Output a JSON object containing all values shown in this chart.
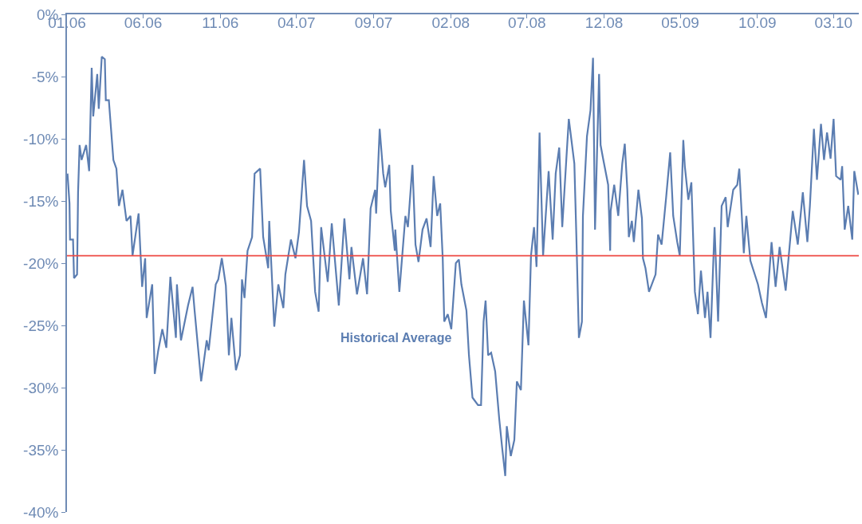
{
  "chart_data": {
    "type": "line",
    "x": [
      "2006-01-02",
      "2006-01-06",
      "2006-01-07",
      "2006-01-13",
      "2006-01-15",
      "2006-01-21",
      "2006-01-23",
      "2006-01-26",
      "2006-01-30",
      "2006-02-08",
      "2006-02-14",
      "2006-02-19",
      "2006-02-22",
      "2006-03-02",
      "2006-03-05",
      "2006-03-11",
      "2006-03-17",
      "2006-03-19",
      "2006-03-25",
      "2006-04-03",
      "2006-04-09",
      "2006-04-14",
      "2006-04-21",
      "2006-04-29",
      "2006-05-07",
      "2006-05-11",
      "2006-05-23",
      "2006-05-27",
      "2006-05-30",
      "2006-06-05",
      "2006-06-08",
      "2006-06-19",
      "2006-06-24",
      "2006-07-01",
      "2006-07-09",
      "2006-07-17",
      "2006-07-25",
      "2006-08-05",
      "2006-08-07",
      "2006-08-15",
      "2006-08-29",
      "2006-09-07",
      "2006-09-11",
      "2006-09-24",
      "2006-10-05",
      "2006-10-09",
      "2006-10-23",
      "2006-10-28",
      "2006-11-04",
      "2006-11-12",
      "2006-11-18",
      "2006-11-23",
      "2006-12-02",
      "2006-12-10",
      "2006-12-14",
      "2006-12-19",
      "2006-12-25",
      "2007-01-03",
      "2007-01-08",
      "2007-01-19",
      "2007-01-25",
      "2007-02-04",
      "2007-02-06",
      "2007-02-16",
      "2007-02-24",
      "2007-03-06",
      "2007-03-10",
      "2007-03-21",
      "2007-03-30",
      "2007-04-06",
      "2007-04-16",
      "2007-04-22",
      "2007-04-30",
      "2007-05-08",
      "2007-05-15",
      "2007-05-20",
      "2007-06-02",
      "2007-06-10",
      "2007-06-24",
      "2007-07-05",
      "2007-07-15",
      "2007-07-19",
      "2007-07-30",
      "2007-08-11",
      "2007-08-19",
      "2007-08-26",
      "2007-09-04",
      "2007-09-06",
      "2007-09-13",
      "2007-09-20",
      "2007-09-24",
      "2007-10-02",
      "2007-10-05",
      "2007-10-13",
      "2007-10-14",
      "2007-10-22",
      "2007-11-03",
      "2007-11-08",
      "2007-11-17",
      "2007-11-23",
      "2007-11-29",
      "2007-12-07",
      "2007-12-15",
      "2007-12-23",
      "2007-12-29",
      "2008-01-05",
      "2008-01-11",
      "2008-01-16",
      "2008-01-19",
      "2008-01-26",
      "2008-02-02",
      "2008-02-11",
      "2008-02-17",
      "2008-02-22",
      "2008-03-03",
      "2008-03-08",
      "2008-03-15",
      "2008-03-26",
      "2008-04-01",
      "2008-04-06",
      "2008-04-10",
      "2008-04-15",
      "2008-04-21",
      "2008-04-29",
      "2008-05-07",
      "2008-05-13",
      "2008-05-19",
      "2008-05-22",
      "2008-05-30",
      "2008-06-06",
      "2008-06-11",
      "2008-06-19",
      "2008-06-25",
      "2008-07-04",
      "2008-07-09",
      "2008-07-15",
      "2008-07-20",
      "2008-07-26",
      "2008-08-02",
      "2008-08-13",
      "2008-08-21",
      "2008-08-27",
      "2008-09-03",
      "2008-09-09",
      "2008-09-17",
      "2008-09-22",
      "2008-10-03",
      "2008-10-07",
      "2008-10-12",
      "2008-10-18",
      "2008-10-20",
      "2008-10-28",
      "2008-11-04",
      "2008-11-09",
      "2008-11-13",
      "2008-11-21",
      "2008-11-24",
      "2008-11-29",
      "2008-12-09",
      "2008-12-13",
      "2008-12-14",
      "2008-12-21",
      "2008-12-29",
      "2009-01-06",
      "2009-01-11",
      "2009-01-16",
      "2009-01-19",
      "2009-01-25",
      "2009-01-29",
      "2009-02-07",
      "2009-02-14",
      "2009-02-16",
      "2009-02-21",
      "2009-02-28",
      "2009-03-13",
      "2009-03-18",
      "2009-03-25",
      "2009-04-03",
      "2009-04-11",
      "2009-04-17",
      "2009-04-25",
      "2009-04-30",
      "2009-05-07",
      "2009-05-10",
      "2009-05-17",
      "2009-05-23",
      "2009-05-30",
      "2009-06-05",
      "2009-06-11",
      "2009-06-19",
      "2009-06-24",
      "2009-06-30",
      "2009-07-08",
      "2009-07-15",
      "2009-07-22",
      "2009-07-30",
      "2009-08-03",
      "2009-08-14",
      "2009-08-22",
      "2009-08-26",
      "2009-09-04",
      "2009-09-09",
      "2009-09-17",
      "2009-10-02",
      "2009-10-10",
      "2009-10-18",
      "2009-10-29",
      "2009-11-06",
      "2009-11-14",
      "2009-11-26",
      "2009-12-10",
      "2009-12-20",
      "2009-12-30",
      "2010-01-08",
      "2010-01-13",
      "2010-01-21",
      "2010-01-27",
      "2010-02-04",
      "2010-02-10",
      "2010-02-16",
      "2010-02-23",
      "2010-03-01",
      "2010-03-06",
      "2010-03-15",
      "2010-03-18",
      "2010-03-23",
      "2010-03-30",
      "2010-04-07",
      "2010-04-11",
      "2010-04-19"
    ],
    "series": [
      {
        "color": "#5b7db1",
        "values": [
          -12.8,
          -15.2,
          -18.1,
          -18.1,
          -21.2,
          -20.9,
          -14.3,
          -10.5,
          -11.7,
          -10.5,
          -12.6,
          -4.3,
          -8.2,
          -4.8,
          -7.6,
          -3.4,
          -3.6,
          -6.9,
          -6.9,
          -11.7,
          -12.4,
          -15.4,
          -14.1,
          -16.6,
          -16.2,
          -19.4,
          -16.0,
          -19.4,
          -21.9,
          -19.6,
          -24.4,
          -21.7,
          -28.9,
          -27.0,
          -25.3,
          -26.8,
          -21.1,
          -26.0,
          -21.7,
          -26.2,
          -23.4,
          -21.9,
          -23.8,
          -29.5,
          -26.2,
          -27.0,
          -21.7,
          -21.3,
          -19.6,
          -21.8,
          -27.4,
          -24.4,
          -28.6,
          -27.4,
          -21.3,
          -22.8,
          -19.0,
          -17.9,
          -12.8,
          -12.4,
          -17.9,
          -20.4,
          -16.6,
          -25.1,
          -21.7,
          -23.6,
          -20.9,
          -18.1,
          -19.6,
          -17.5,
          -11.7,
          -15.4,
          -16.6,
          -22.3,
          -23.9,
          -17.1,
          -21.5,
          -16.8,
          -23.4,
          -16.4,
          -21.3,
          -18.7,
          -22.5,
          -19.6,
          -22.5,
          -15.6,
          -14.1,
          -16.0,
          -9.2,
          -12.8,
          -13.9,
          -12.1,
          -15.8,
          -19.0,
          -17.3,
          -22.3,
          -16.2,
          -17.1,
          -12.1,
          -18.5,
          -19.9,
          -17.3,
          -16.4,
          -18.7,
          -13.0,
          -16.2,
          -15.2,
          -19.6,
          -24.7,
          -24.1,
          -25.3,
          -20.0,
          -19.7,
          -21.7,
          -23.8,
          -27.4,
          -30.8,
          -31.4,
          -31.4,
          -24.7,
          -23.0,
          -27.4,
          -27.2,
          -28.7,
          -32.5,
          -34.9,
          -37.1,
          -33.1,
          -35.5,
          -34.2,
          -29.5,
          -30.2,
          -23.0,
          -26.6,
          -19.4,
          -17.1,
          -20.3,
          -9.5,
          -19.4,
          -12.6,
          -18.1,
          -12.8,
          -10.7,
          -17.1,
          -11.7,
          -8.4,
          -12.0,
          -17.9,
          -26.0,
          -24.7,
          -16.2,
          -9.8,
          -7.7,
          -3.5,
          -17.3,
          -4.8,
          -10.5,
          -11.6,
          -13.7,
          -19.0,
          -15.8,
          -13.7,
          -16.2,
          -12.0,
          -10.4,
          -14.1,
          -17.9,
          -16.6,
          -18.3,
          -14.1,
          -16.4,
          -19.6,
          -20.4,
          -22.3,
          -20.9,
          -17.7,
          -18.5,
          -14.7,
          -11.1,
          -16.2,
          -18.3,
          -19.4,
          -10.1,
          -12.2,
          -14.9,
          -13.5,
          -22.3,
          -24.1,
          -20.6,
          -24.4,
          -22.3,
          -26.0,
          -17.1,
          -24.7,
          -15.4,
          -14.7,
          -17.1,
          -14.1,
          -13.7,
          -12.4,
          -19.2,
          -16.2,
          -19.8,
          -21.7,
          -23.2,
          -24.4,
          -18.3,
          -21.9,
          -18.7,
          -22.2,
          -15.8,
          -18.5,
          -14.3,
          -18.3,
          -15.4,
          -9.2,
          -13.3,
          -8.8,
          -11.7,
          -9.5,
          -11.6,
          -8.4,
          -13.0,
          -13.3,
          -12.2,
          -17.3,
          -15.4,
          -18.1,
          -12.6,
          -14.5
        ]
      }
    ],
    "xlim": [
      "2006-01-01",
      "2010-04-20"
    ],
    "xticks": [
      {
        "value": "2006-01-01",
        "label": "01.06"
      },
      {
        "value": "2006-06-01",
        "label": "06.06"
      },
      {
        "value": "2006-11-01",
        "label": "11.06"
      },
      {
        "value": "2007-04-01",
        "label": "04.07"
      },
      {
        "value": "2007-09-01",
        "label": "09.07"
      },
      {
        "value": "2008-02-01",
        "label": "02.08"
      },
      {
        "value": "2008-07-01",
        "label": "07.08"
      },
      {
        "value": "2008-12-01",
        "label": "12.08"
      },
      {
        "value": "2009-05-01",
        "label": "05.09"
      },
      {
        "value": "2009-10-01",
        "label": "10.09"
      },
      {
        "value": "2010-03-01",
        "label": "03.10"
      }
    ],
    "ylim": [
      -40,
      0
    ],
    "yticks": [
      {
        "value": 0,
        "label": "0%"
      },
      {
        "value": -5,
        "label": "-5%"
      },
      {
        "value": -10,
        "label": "-10%"
      },
      {
        "value": -15,
        "label": "-15%"
      },
      {
        "value": -20,
        "label": "-20%"
      },
      {
        "value": -25,
        "label": "-25%"
      },
      {
        "value": -30,
        "label": "-30%"
      },
      {
        "value": -35,
        "label": "-35%"
      },
      {
        "value": -40,
        "label": "-40%"
      }
    ],
    "ref_lines": [
      {
        "axis": "y",
        "value": -19.4,
        "color": "#ee4a44"
      }
    ],
    "annotations": [
      "Historical Average"
    ],
    "marker": "none",
    "line_style": "solid"
  }
}
